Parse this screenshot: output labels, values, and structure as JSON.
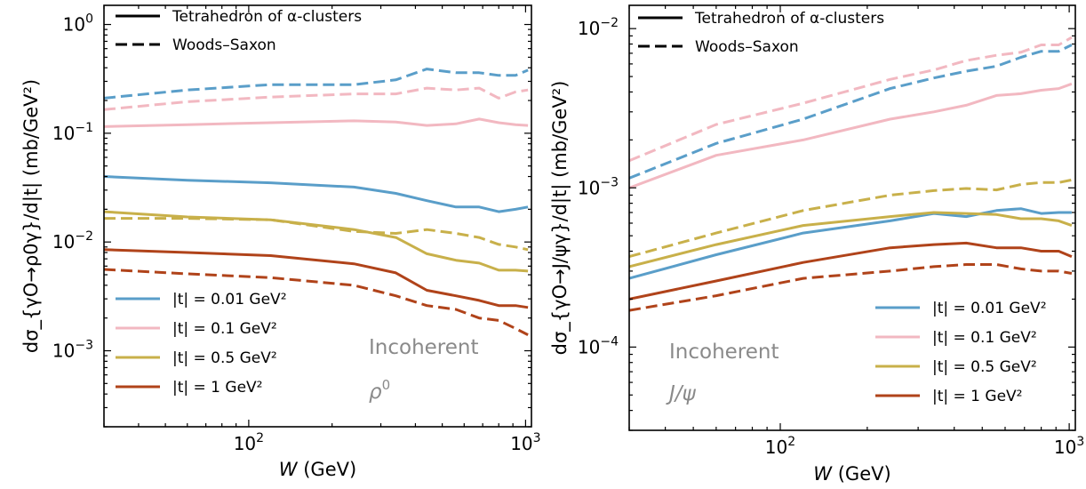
{
  "chart_data": [
    {
      "type": "line",
      "xscale": "log",
      "yscale": "log",
      "xlim": [
        30,
        1050
      ],
      "ylim": [
        0.0002,
        1.5
      ],
      "xlabel": "W (GeV)",
      "ylabel": "dσ_{γO→ρ0γ}/d|t| (mb/GeV²)",
      "annotation_title": "Incoherent",
      "annotation_particle": "ρ0",
      "x_ticks": [
        {
          "value": 100,
          "base": "10",
          "exp": "2"
        },
        {
          "value": 1000,
          "base": "10",
          "exp": "3"
        }
      ],
      "y_ticks": [
        {
          "value": 1,
          "base": "10",
          "exp": "0"
        },
        {
          "value": 0.1,
          "base": "10",
          "exp": "−1"
        },
        {
          "value": 0.01,
          "base": "10",
          "exp": "−2"
        },
        {
          "value": 0.001,
          "base": "10",
          "exp": "−3"
        }
      ],
      "style_legend": [
        {
          "label": "Tetrahedron of α-clusters",
          "dash": "solid"
        },
        {
          "label": "Woods–Saxon",
          "dash": "dashed"
        }
      ],
      "color_legend": [
        {
          "label": "|t| = 0.01 GeV²",
          "color": "#5a9ec9"
        },
        {
          "label": "|t| = 0.1 GeV²",
          "color": "#f2b8c1"
        },
        {
          "label": "|t| = 0.5 GeV²",
          "color": "#c8b04a"
        },
        {
          "label": "|t| = 1 GeV²",
          "color": "#b0431a"
        }
      ],
      "series": [
        {
          "t": "0.01",
          "model": "Woods–Saxon",
          "color": "#5a9ec9",
          "dash": "dashed",
          "x": [
            30,
            60,
            120,
            240,
            340,
            440,
            560,
            680,
            800,
            920,
            1020
          ],
          "y": [
            0.21,
            0.25,
            0.28,
            0.28,
            0.31,
            0.39,
            0.36,
            0.36,
            0.34,
            0.34,
            0.38
          ]
        },
        {
          "t": "0.1",
          "model": "Woods–Saxon",
          "color": "#f2b8c1",
          "dash": "dashed",
          "x": [
            30,
            60,
            120,
            240,
            340,
            440,
            560,
            680,
            800,
            920,
            1020
          ],
          "y": [
            0.165,
            0.195,
            0.215,
            0.23,
            0.23,
            0.26,
            0.25,
            0.26,
            0.21,
            0.24,
            0.25
          ]
        },
        {
          "t": "0.1",
          "model": "Tetrahedron",
          "color": "#f2b8c1",
          "dash": "solid",
          "x": [
            30,
            60,
            120,
            240,
            340,
            440,
            560,
            680,
            800,
            920,
            1020
          ],
          "y": [
            0.115,
            0.12,
            0.125,
            0.13,
            0.127,
            0.118,
            0.122,
            0.135,
            0.125,
            0.12,
            0.118
          ]
        },
        {
          "t": "0.01",
          "model": "Tetrahedron",
          "color": "#5a9ec9",
          "dash": "solid",
          "x": [
            30,
            60,
            120,
            240,
            340,
            440,
            560,
            680,
            800,
            920,
            1020
          ],
          "y": [
            0.04,
            0.037,
            0.035,
            0.032,
            0.028,
            0.024,
            0.021,
            0.021,
            0.019,
            0.02,
            0.021
          ]
        },
        {
          "t": "0.5",
          "model": "Tetrahedron",
          "color": "#c8b04a",
          "dash": "solid",
          "x": [
            30,
            60,
            120,
            240,
            340,
            440,
            560,
            680,
            800,
            920,
            1020
          ],
          "y": [
            0.019,
            0.017,
            0.016,
            0.013,
            0.011,
            0.0078,
            0.0068,
            0.0064,
            0.0055,
            0.0055,
            0.0054
          ]
        },
        {
          "t": "0.5",
          "model": "Woods–Saxon",
          "color": "#c8b04a",
          "dash": "dashed",
          "x": [
            30,
            60,
            120,
            240,
            340,
            440,
            560,
            680,
            800,
            920,
            1020
          ],
          "y": [
            0.0165,
            0.0165,
            0.016,
            0.0125,
            0.012,
            0.013,
            0.012,
            0.011,
            0.0095,
            0.009,
            0.0085
          ]
        },
        {
          "t": "1",
          "model": "Tetrahedron",
          "color": "#b0431a",
          "dash": "solid",
          "x": [
            30,
            60,
            120,
            240,
            340,
            440,
            560,
            680,
            800,
            920,
            1020
          ],
          "y": [
            0.0085,
            0.008,
            0.0075,
            0.0063,
            0.0052,
            0.0036,
            0.0032,
            0.0029,
            0.0026,
            0.0026,
            0.0025
          ]
        },
        {
          "t": "1",
          "model": "Woods–Saxon",
          "color": "#b0431a",
          "dash": "dashed",
          "x": [
            30,
            60,
            120,
            240,
            340,
            440,
            560,
            680,
            800,
            920,
            1020
          ],
          "y": [
            0.0056,
            0.0051,
            0.0047,
            0.004,
            0.0032,
            0.0026,
            0.0024,
            0.002,
            0.0019,
            0.0016,
            0.0014
          ]
        }
      ]
    },
    {
      "type": "line",
      "xscale": "log",
      "yscale": "log",
      "xlim": [
        30,
        1050
      ],
      "ylim": [
        3e-05,
        0.014
      ],
      "xlabel": "W (GeV)",
      "ylabel": "dσ_{γO→J/ψγ}/d|t| (mb/GeV²)",
      "annotation_title": "Incoherent",
      "annotation_particle": "J/ψ",
      "x_ticks": [
        {
          "value": 100,
          "base": "10",
          "exp": "2"
        },
        {
          "value": 1000,
          "base": "10",
          "exp": "3"
        }
      ],
      "y_ticks": [
        {
          "value": 0.01,
          "base": "10",
          "exp": "−2"
        },
        {
          "value": 0.001,
          "base": "10",
          "exp": "−3"
        },
        {
          "value": 0.0001,
          "base": "10",
          "exp": "−4"
        }
      ],
      "style_legend": [
        {
          "label": "Tetrahedron of α-clusters",
          "dash": "solid"
        },
        {
          "label": "Woods–Saxon",
          "dash": "dashed"
        }
      ],
      "color_legend": [
        {
          "label": "|t| = 0.01 GeV²",
          "color": "#5a9ec9"
        },
        {
          "label": "|t| = 0.1 GeV²",
          "color": "#f2b8c1"
        },
        {
          "label": "|t| = 0.5 GeV²",
          "color": "#c8b04a"
        },
        {
          "label": "|t| = 1 GeV²",
          "color": "#b0431a"
        }
      ],
      "series": [
        {
          "t": "0.1",
          "model": "Woods–Saxon",
          "color": "#f2b8c1",
          "dash": "dashed",
          "x": [
            30,
            60,
            120,
            240,
            340,
            440,
            560,
            680,
            800,
            920,
            1020
          ],
          "y": [
            0.00148,
            0.0025,
            0.0034,
            0.0048,
            0.0055,
            0.0063,
            0.0068,
            0.0071,
            0.0079,
            0.0079,
            0.0088
          ]
        },
        {
          "t": "0.01",
          "model": "Woods–Saxon",
          "color": "#5a9ec9",
          "dash": "dashed",
          "x": [
            30,
            60,
            120,
            240,
            340,
            440,
            560,
            680,
            800,
            920,
            1020
          ],
          "y": [
            0.00115,
            0.0019,
            0.0027,
            0.0042,
            0.0049,
            0.0054,
            0.0058,
            0.0066,
            0.0072,
            0.0072,
            0.0079
          ]
        },
        {
          "t": "0.1",
          "model": "Tetrahedron",
          "color": "#f2b8c1",
          "dash": "solid",
          "x": [
            30,
            60,
            120,
            240,
            340,
            440,
            560,
            680,
            800,
            920,
            1020
          ],
          "y": [
            0.001,
            0.0016,
            0.002,
            0.0027,
            0.003,
            0.0033,
            0.0038,
            0.0039,
            0.0041,
            0.0042,
            0.0045
          ]
        },
        {
          "t": "0.5",
          "model": "Woods–Saxon",
          "color": "#c8b04a",
          "dash": "dashed",
          "x": [
            30,
            60,
            120,
            240,
            340,
            440,
            560,
            680,
            800,
            920,
            1020
          ],
          "y": [
            0.00037,
            0.00052,
            0.00072,
            0.0009,
            0.00096,
            0.00099,
            0.00097,
            0.00105,
            0.00108,
            0.00108,
            0.00112
          ]
        },
        {
          "t": "0.01",
          "model": "Tetrahedron",
          "color": "#5a9ec9",
          "dash": "solid",
          "x": [
            30,
            60,
            120,
            240,
            340,
            440,
            560,
            680,
            800,
            920,
            1020
          ],
          "y": [
            0.00027,
            0.00038,
            0.00052,
            0.00062,
            0.00069,
            0.00066,
            0.00072,
            0.00074,
            0.00069,
            0.0007,
            0.0007
          ]
        },
        {
          "t": "0.5",
          "model": "Tetrahedron",
          "color": "#c8b04a",
          "dash": "solid",
          "x": [
            30,
            60,
            120,
            240,
            340,
            440,
            560,
            680,
            800,
            920,
            1020
          ],
          "y": [
            0.00032,
            0.00044,
            0.00058,
            0.00066,
            0.0007,
            0.00069,
            0.00068,
            0.00064,
            0.00064,
            0.00062,
            0.00058
          ]
        },
        {
          "t": "1",
          "model": "Tetrahedron",
          "color": "#b0431a",
          "dash": "solid",
          "x": [
            30,
            60,
            120,
            240,
            340,
            440,
            560,
            680,
            800,
            920,
            1020
          ],
          "y": [
            0.0002,
            0.00026,
            0.00034,
            0.00042,
            0.00044,
            0.00045,
            0.00042,
            0.00042,
            0.0004,
            0.0004,
            0.00037
          ]
        },
        {
          "t": "1",
          "model": "Woods–Saxon",
          "color": "#b0431a",
          "dash": "dashed",
          "x": [
            30,
            60,
            120,
            240,
            340,
            440,
            560,
            680,
            800,
            920,
            1020
          ],
          "y": [
            0.00017,
            0.00021,
            0.00027,
            0.0003,
            0.00032,
            0.00033,
            0.00033,
            0.00031,
            0.0003,
            0.0003,
            0.00029
          ]
        }
      ]
    }
  ]
}
